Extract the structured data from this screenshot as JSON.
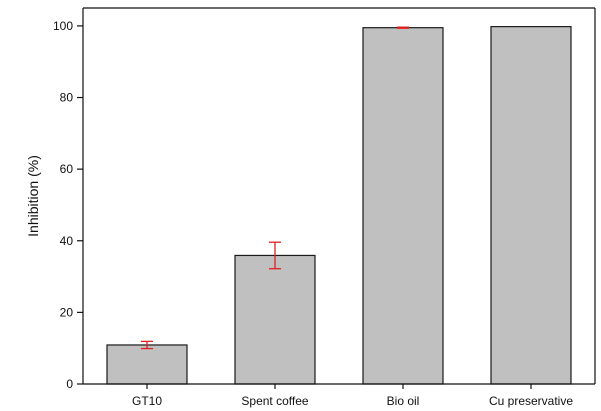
{
  "chart_data": {
    "type": "bar",
    "title": "",
    "xlabel": "",
    "ylabel": "Inhibition (%)",
    "ylim": [
      0,
      105
    ],
    "yticks": [
      0,
      20,
      40,
      60,
      80,
      100
    ],
    "categories": [
      "GT10",
      "Spent coffee",
      "Bio oil",
      "Cu preservative"
    ],
    "values": [
      10.9,
      35.9,
      99.5,
      99.8
    ],
    "errors": [
      1.0,
      3.7,
      0.15,
      0
    ],
    "grid": false,
    "legend": "none",
    "colors": {
      "bar_fill": "#c0c0c0",
      "bar_stroke": "#1a1a1a",
      "error_bar": "#e02020",
      "axis": "#111111"
    }
  }
}
